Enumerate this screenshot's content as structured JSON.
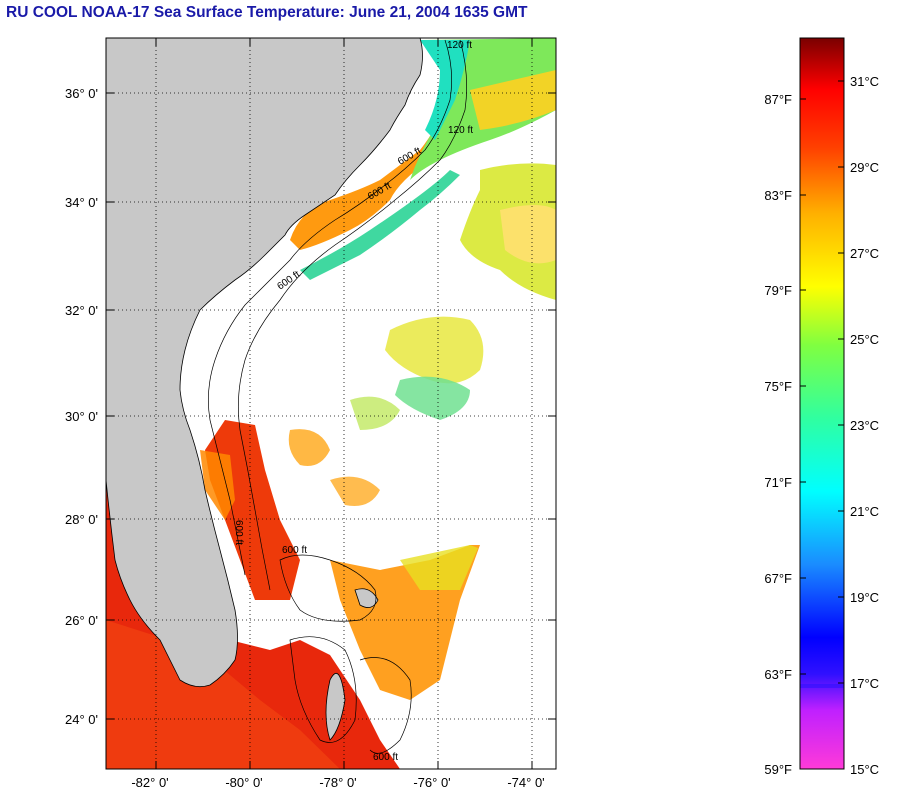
{
  "title": "RU COOL  NOAA-17  Sea Surface Temperature:  June 21, 2004 1635 GMT",
  "map": {
    "lat_labels": [
      "36° 0'",
      "34° 0'",
      "32° 0'",
      "30° 0'",
      "28° 0'",
      "26° 0'",
      "24° 0'"
    ],
    "lon_labels": [
      "-82° 0'",
      "-80° 0'",
      "-78° 0'",
      "-76° 0'",
      "-74° 0'"
    ],
    "contour_labels": [
      "120 ft",
      "120 ft",
      "600 ft",
      "600 ft",
      "600 ft",
      "600 ft",
      "600 ft",
      "600 ft"
    ],
    "land_color": "#c8c8c8",
    "grid": "dotted"
  },
  "colorbar": {
    "fahrenheit_labels": [
      "87°F",
      "83°F",
      "79°F",
      "75°F",
      "71°F",
      "67°F",
      "63°F",
      "59°F"
    ],
    "celsius_labels": [
      "31°C",
      "29°C",
      "27°C",
      "25°C",
      "23°C",
      "21°C",
      "19°C",
      "17°C",
      "15°C"
    ],
    "min_f": 59,
    "max_f": 88.7,
    "min_c": 15,
    "max_c": 31.5
  }
}
